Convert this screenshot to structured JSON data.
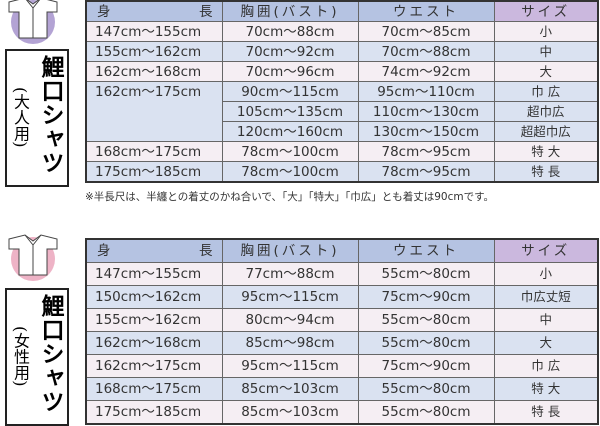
{
  "headers": {
    "height_l": "身",
    "height_r": "長",
    "bust": "胸囲(バスト)",
    "waist": "ウエスト",
    "size": "サイズ"
  },
  "colors": {
    "header": "#b5c3e2",
    "size_header": "#cbb8de",
    "row_pink": "#f5eef3",
    "row_blue": "#dae2f1",
    "adult_icon": "#b3a3d4",
    "women_icon": "#eeb3c6"
  },
  "adult": {
    "title": "鯉口シャツ",
    "subtitle": "(大人用)",
    "icon": "shirt-icon",
    "rows": [
      {
        "height": "147cm〜155cm",
        "bust": "70cm〜88cm",
        "waist": "70cm〜85cm",
        "size": "小"
      },
      {
        "height": "155cm〜162cm",
        "bust": "70cm〜92cm",
        "waist": "70cm〜88cm",
        "size": "中"
      },
      {
        "height": "162cm〜168cm",
        "bust": "70cm〜96cm",
        "waist": "74cm〜92cm",
        "size": "大"
      },
      {
        "height": "162cm〜175cm",
        "bust": "90cm〜115cm",
        "waist": "95cm〜110cm",
        "size": "巾 広"
      },
      {
        "height": "",
        "bust": "105cm〜135cm",
        "waist": "110cm〜130cm",
        "size": "超巾広"
      },
      {
        "height": "",
        "bust": "120cm〜160cm",
        "waist": "130cm〜150cm",
        "size": "超超巾広"
      },
      {
        "height": "168cm〜175cm",
        "bust": "78cm〜100cm",
        "waist": "78cm〜95cm",
        "size": "特 大"
      },
      {
        "height": "175cm〜185cm",
        "bust": "78cm〜100cm",
        "waist": "78cm〜95cm",
        "size": "特 長"
      }
    ],
    "note": "※半長尺は、半纏との着丈のかね合いで、「大」「特大」「巾広」とも着丈は90cmです。"
  },
  "women": {
    "title": "鯉口シャツ",
    "subtitle": "(女性用)",
    "icon": "shirt-icon",
    "rows": [
      {
        "height": "147cm〜155cm",
        "bust": "77cm〜88cm",
        "waist": "55cm〜80cm",
        "size": "小"
      },
      {
        "height": "150cm〜162cm",
        "bust": "95cm〜115cm",
        "waist": "75cm〜90cm",
        "size": "巾広丈短"
      },
      {
        "height": "155cm〜162cm",
        "bust": "80cm〜94cm",
        "waist": "55cm〜80cm",
        "size": "中"
      },
      {
        "height": "162cm〜168cm",
        "bust": "85cm〜98cm",
        "waist": "55cm〜80cm",
        "size": "大"
      },
      {
        "height": "162cm〜175cm",
        "bust": "95cm〜115cm",
        "waist": "75cm〜90cm",
        "size": "巾 広"
      },
      {
        "height": "168cm〜175cm",
        "bust": "85cm〜103cm",
        "waist": "55cm〜80cm",
        "size": "特 大"
      },
      {
        "height": "175cm〜185cm",
        "bust": "85cm〜103cm",
        "waist": "55cm〜80cm",
        "size": "特 長"
      }
    ]
  }
}
